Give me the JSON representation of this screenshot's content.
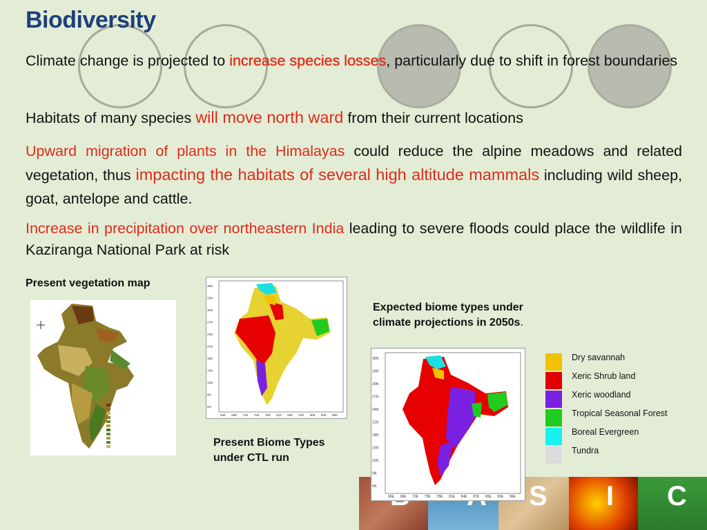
{
  "title": "Biodiversity",
  "p1": {
    "a": "Climate change is projected to ",
    "b": "increase species losses",
    "c": ", particularly due to shift in forest boundaries"
  },
  "p2": {
    "a": "Habitats of many species ",
    "b": "will move north ward",
    "c": " from their current locations"
  },
  "p3": {
    "a": "Upward migration of plants in the Himalayas",
    "b": " could reduce the alpine meadows and related vegetation, thus ",
    "c": "impacting the habitats of several high altitude mammals",
    "d": " including wild sheep, goat, antelope and cattle."
  },
  "p4": {
    "a": "Increase in precipitation over northeastern India",
    "b": " leading to severe floods could place the wildlife in  Kaziranga National Park at risk"
  },
  "captions": {
    "present_veg": "Present vegetation map",
    "present_biome": "Present Biome Types under CTL run",
    "expected_a": "Expected biome types under climate projections in 2050s",
    "expected_b": "."
  },
  "legend": [
    {
      "label": "Dry savannah",
      "color": "#f2c200"
    },
    {
      "label": "Xeric Shrub land",
      "color": "#e00000"
    },
    {
      "label": "Xeric woodland",
      "color": "#7a20e0"
    },
    {
      "label": "Tropical Seasonal Forest",
      "color": "#1fcc1f"
    },
    {
      "label": "Boreal Evergreen",
      "color": "#19f0f0"
    },
    {
      "label": "Tundra",
      "color": "#dcdcdc"
    }
  ],
  "map_axes": {
    "lat": [
      "36N",
      "33N",
      "30N",
      "27N",
      "24N",
      "21N",
      "18N",
      "15N",
      "12N",
      "9N",
      "6N"
    ],
    "lon": [
      "66E",
      "69E",
      "72E",
      "75E",
      "78E",
      "81E",
      "84E",
      "87E",
      "90E",
      "93E",
      "96E"
    ]
  },
  "footer_letters": [
    "B",
    "A",
    "S",
    "I",
    "C"
  ]
}
